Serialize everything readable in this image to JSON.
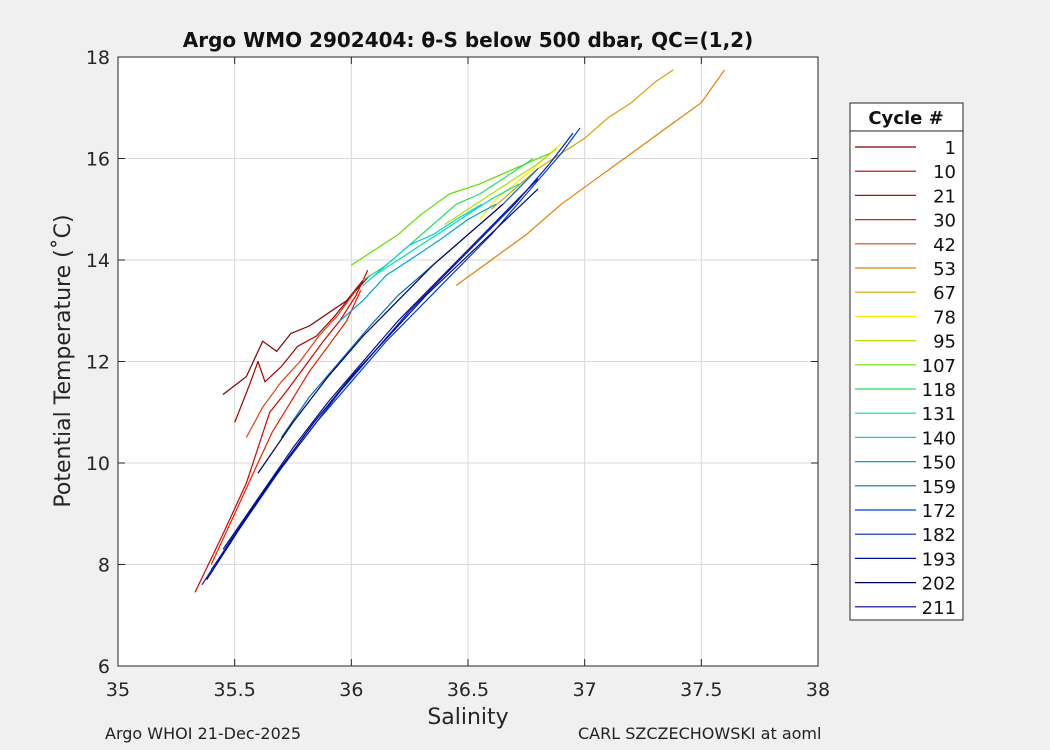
{
  "chart_data": {
    "type": "line",
    "title": "Argo WMO 2902404: θ-S below 500 dbar,  QC=(1,2)",
    "xlabel": "Salinity",
    "ylabel": "Potential Temperature (˚C)",
    "xlim": [
      35,
      38
    ],
    "ylim": [
      6,
      18
    ],
    "xticks": [
      35,
      35.5,
      36,
      36.5,
      37,
      37.5,
      38
    ],
    "xtick_labels": [
      "35",
      "35.5",
      "36",
      "36.5",
      "37",
      "37.5",
      "38"
    ],
    "yticks": [
      6,
      8,
      10,
      12,
      14,
      16,
      18
    ],
    "ytick_labels": [
      "6",
      "8",
      "10",
      "12",
      "14",
      "16",
      "18"
    ],
    "grid": true,
    "legend_title": "Cycle #",
    "legend_placement": "right, outside plot",
    "series": [
      {
        "name": "1",
        "color": "#800000",
        "x": [
          35.45,
          35.55,
          35.62,
          35.68,
          35.74,
          35.82,
          35.9,
          35.98,
          36.05
        ],
        "y": [
          11.35,
          11.7,
          12.4,
          12.2,
          12.55,
          12.7,
          12.95,
          13.2,
          13.6
        ]
      },
      {
        "name": "10",
        "color": "#aa0000",
        "x": [
          35.5,
          35.56,
          35.6,
          35.63,
          35.7,
          35.77,
          35.85,
          35.93,
          36.0,
          36.08
        ],
        "y": [
          10.8,
          11.5,
          12.0,
          11.6,
          11.9,
          12.3,
          12.5,
          12.9,
          13.3,
          13.7
        ]
      },
      {
        "name": "21",
        "color": "#d40000",
        "x": [
          35.33,
          35.45,
          35.55,
          35.6,
          35.65,
          35.72,
          35.8,
          35.88,
          35.95,
          36.02,
          36.07
        ],
        "y": [
          7.45,
          8.6,
          9.6,
          10.3,
          11.0,
          11.4,
          11.9,
          12.4,
          12.8,
          13.3,
          13.8
        ]
      },
      {
        "name": "30",
        "color": "#e02000",
        "x": [
          35.4,
          35.5,
          35.58,
          35.66,
          35.74,
          35.82,
          35.9,
          35.98,
          36.04
        ],
        "y": [
          8.0,
          9.0,
          9.8,
          10.6,
          11.2,
          11.8,
          12.3,
          12.8,
          13.4
        ]
      },
      {
        "name": "42",
        "color": "#e04010",
        "x": [
          35.55,
          35.62,
          35.7,
          35.78,
          35.86,
          35.94,
          36.02
        ],
        "y": [
          10.5,
          11.1,
          11.6,
          12.0,
          12.5,
          12.9,
          13.4
        ]
      },
      {
        "name": "53",
        "color": "#e08000",
        "x": [
          36.45,
          36.6,
          36.75,
          36.9,
          37.05,
          37.2,
          37.35,
          37.5,
          37.6
        ],
        "y": [
          13.5,
          14.0,
          14.5,
          15.1,
          15.6,
          16.1,
          16.6,
          17.1,
          17.75
        ]
      },
      {
        "name": "67",
        "color": "#d8a000",
        "x": [
          36.6,
          36.7,
          36.8,
          36.9,
          37.0,
          37.1,
          37.2,
          37.3,
          37.38
        ],
        "y": [
          15.0,
          15.4,
          15.8,
          16.1,
          16.4,
          16.8,
          17.1,
          17.5,
          17.75
        ]
      },
      {
        "name": "78",
        "color": "#ffee00",
        "x": [
          36.55,
          36.62,
          36.7,
          36.78,
          36.85,
          36.9
        ],
        "y": [
          14.8,
          15.2,
          15.5,
          15.8,
          16.1,
          16.3
        ]
      },
      {
        "name": "95",
        "color": "#b0e000",
        "x": [
          36.4,
          36.5,
          36.6,
          36.7,
          36.8,
          36.88
        ],
        "y": [
          14.7,
          15.0,
          15.3,
          15.6,
          15.9,
          16.2
        ]
      },
      {
        "name": "107",
        "color": "#60e000",
        "x": [
          36.0,
          36.1,
          36.2,
          36.3,
          36.42,
          36.55,
          36.7,
          36.85
        ],
        "y": [
          13.9,
          14.2,
          14.5,
          14.9,
          15.3,
          15.5,
          15.8,
          16.1
        ]
      },
      {
        "name": "118",
        "color": "#20e060",
        "x": [
          36.05,
          36.15,
          36.25,
          36.35,
          36.45,
          36.55,
          36.65,
          36.78
        ],
        "y": [
          13.6,
          13.9,
          14.3,
          14.7,
          15.1,
          15.3,
          15.6,
          16.0
        ]
      },
      {
        "name": "131",
        "color": "#00e0a0",
        "x": [
          36.1,
          36.2,
          36.3,
          36.4,
          36.5,
          36.6,
          36.72
        ],
        "y": [
          13.7,
          14.0,
          14.3,
          14.6,
          14.9,
          15.2,
          15.5
        ]
      },
      {
        "name": "140",
        "color": "#00d0e0",
        "x": [
          36.05,
          36.15,
          36.25,
          36.35,
          36.45,
          36.56
        ],
        "y": [
          13.5,
          13.9,
          14.3,
          14.5,
          14.8,
          15.1
        ]
      },
      {
        "name": "150",
        "color": "#00a0e0",
        "x": [
          35.95,
          36.05,
          36.15,
          36.25,
          36.38,
          36.5,
          36.62
        ],
        "y": [
          12.8,
          13.2,
          13.7,
          14.0,
          14.4,
          14.8,
          15.1
        ]
      },
      {
        "name": "159",
        "color": "#0070c0",
        "x": [
          35.7,
          35.82,
          35.95,
          36.08,
          36.2,
          36.35,
          36.5,
          36.65,
          36.8
        ],
        "y": [
          10.5,
          11.3,
          12.0,
          12.7,
          13.3,
          13.9,
          14.5,
          15.1,
          15.8
        ]
      },
      {
        "name": "172",
        "color": "#0040d0",
        "x": [
          35.4,
          35.55,
          35.7,
          35.85,
          36.0,
          36.15,
          36.3,
          36.45,
          36.6,
          36.75,
          36.9,
          36.98
        ],
        "y": [
          7.9,
          8.9,
          9.9,
          10.8,
          11.6,
          12.4,
          13.1,
          13.8,
          14.5,
          15.3,
          16.1,
          16.6
        ]
      },
      {
        "name": "182",
        "color": "#0020c0",
        "x": [
          35.36,
          35.5,
          35.65,
          35.8,
          35.95,
          36.1,
          36.25,
          36.4,
          36.55,
          36.7,
          36.85,
          36.95
        ],
        "y": [
          7.6,
          8.6,
          9.6,
          10.5,
          11.4,
          12.2,
          13.0,
          13.7,
          14.4,
          15.1,
          15.9,
          16.5
        ]
      },
      {
        "name": "193",
        "color": "#0010a0",
        "x": [
          35.45,
          35.6,
          35.75,
          35.9,
          36.05,
          36.2,
          36.35,
          36.5,
          36.65,
          36.8
        ],
        "y": [
          8.3,
          9.3,
          10.3,
          11.2,
          12.0,
          12.8,
          13.5,
          14.2,
          14.9,
          15.6
        ]
      },
      {
        "name": "202",
        "color": "#000060",
        "x": [
          35.6,
          35.75,
          35.9,
          36.05,
          36.2,
          36.35,
          36.5,
          36.65
        ],
        "y": [
          9.8,
          10.8,
          11.7,
          12.5,
          13.2,
          13.9,
          14.5,
          15.1
        ]
      },
      {
        "name": "211",
        "color": "#000090",
        "x": [
          35.38,
          35.52,
          35.68,
          35.84,
          36.0,
          36.16,
          36.32,
          36.48,
          36.64,
          36.8
        ],
        "y": [
          7.7,
          8.7,
          9.8,
          10.8,
          11.7,
          12.5,
          13.3,
          14.0,
          14.7,
          15.4
        ]
      }
    ]
  },
  "footer": {
    "left": "Argo WHOI 21-Dec-2025",
    "right": "CARL SZCZECHOWSKI at aoml"
  }
}
